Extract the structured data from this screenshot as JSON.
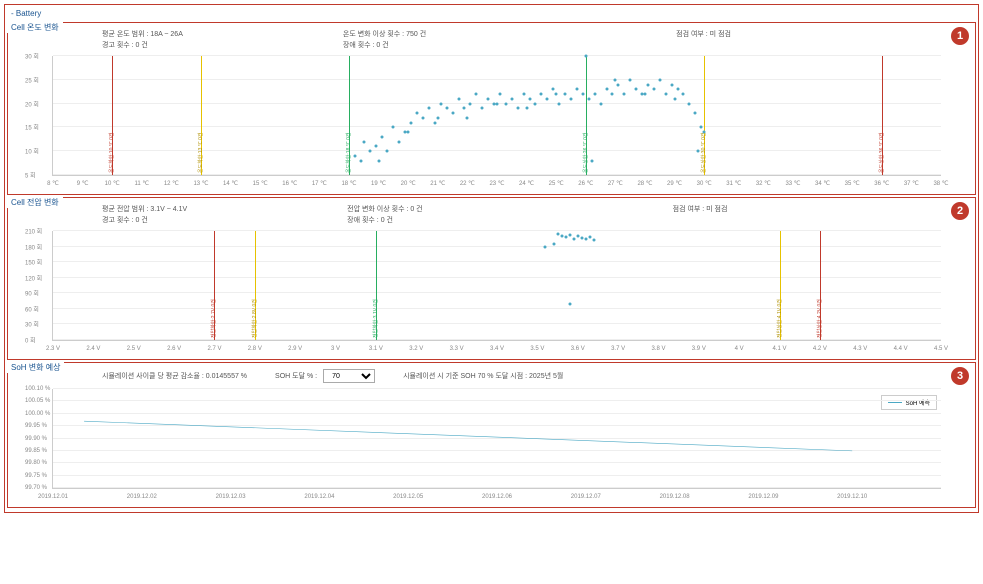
{
  "header": {
    "title": "- Battery"
  },
  "badges": {
    "one": "1",
    "two": "2",
    "three": "3"
  },
  "panel1": {
    "title": "Cell 온도 변화",
    "info_left_1": "평균 온도 범위 :  18A ~ 26A",
    "info_left_2": "경고 횟수 :  0 건",
    "info_mid_1": "온도 변화 이상 횟수 :  750 건",
    "info_mid_2": "장애 횟수 :  0 건",
    "info_right": "점검 여부 :  미 점검",
    "ylim": [
      5,
      30
    ],
    "xlim": [
      8,
      38
    ],
    "yticks": [
      5,
      10,
      15,
      20,
      25,
      30
    ],
    "yunit": "회",
    "xticks": [
      8,
      9,
      10,
      11,
      12,
      13,
      14,
      15,
      16,
      17,
      18,
      19,
      20,
      21,
      22,
      23,
      24,
      25,
      26,
      27,
      28,
      29,
      30,
      31,
      32,
      33,
      34,
      35,
      36,
      37,
      38
    ],
    "xunit": "℃",
    "vlines": [
      {
        "x": 10,
        "color": "red",
        "label": "온도하한:10 ℃ 0건"
      },
      {
        "x": 13,
        "color": "yellow",
        "label": "온도하한:13 ℃ 0건"
      },
      {
        "x": 18,
        "color": "green",
        "label": "온도하한:18 ℃ 0건"
      },
      {
        "x": 26,
        "color": "green",
        "label": "온도상한:26 ℃ 0건"
      },
      {
        "x": 30,
        "color": "yellow",
        "label": "온도상한:30 ℃ 0건"
      },
      {
        "x": 36,
        "color": "red",
        "label": "온도상한:36 ℃ 0건"
      }
    ],
    "points": [
      [
        18.2,
        9
      ],
      [
        18.5,
        12
      ],
      [
        18.7,
        10
      ],
      [
        18.9,
        11
      ],
      [
        19.1,
        13
      ],
      [
        19.3,
        10
      ],
      [
        19.5,
        15
      ],
      [
        19.7,
        12
      ],
      [
        19.9,
        14
      ],
      [
        20.1,
        16
      ],
      [
        20.3,
        18
      ],
      [
        20.5,
        17
      ],
      [
        20.7,
        19
      ],
      [
        20.9,
        16
      ],
      [
        21.1,
        20
      ],
      [
        21.3,
        19
      ],
      [
        21.5,
        18
      ],
      [
        21.7,
        21
      ],
      [
        21.9,
        19
      ],
      [
        22.1,
        20
      ],
      [
        22.3,
        22
      ],
      [
        22.5,
        19
      ],
      [
        22.7,
        21
      ],
      [
        22.9,
        20
      ],
      [
        23.1,
        22
      ],
      [
        23.3,
        20
      ],
      [
        23.5,
        21
      ],
      [
        23.7,
        19
      ],
      [
        23.9,
        22
      ],
      [
        24.1,
        21
      ],
      [
        24.3,
        20
      ],
      [
        24.5,
        22
      ],
      [
        24.7,
        21
      ],
      [
        24.9,
        23
      ],
      [
        25.1,
        20
      ],
      [
        25.3,
        22
      ],
      [
        25.5,
        21
      ],
      [
        25.7,
        23
      ],
      [
        25.9,
        22
      ],
      [
        26.0,
        30
      ],
      [
        26.1,
        21
      ],
      [
        26.3,
        22
      ],
      [
        26.5,
        20
      ],
      [
        26.7,
        23
      ],
      [
        26.9,
        22
      ],
      [
        27.1,
        24
      ],
      [
        27.3,
        22
      ],
      [
        27.5,
        25
      ],
      [
        27.7,
        23
      ],
      [
        27.9,
        22
      ],
      [
        28.1,
        24
      ],
      [
        28.3,
        23
      ],
      [
        28.5,
        25
      ],
      [
        28.7,
        22
      ],
      [
        28.9,
        24
      ],
      [
        29.1,
        23
      ],
      [
        29.3,
        22
      ],
      [
        29.5,
        20
      ],
      [
        29.7,
        18
      ],
      [
        29.8,
        10
      ],
      [
        29.9,
        15
      ],
      [
        30.0,
        14
      ],
      [
        19.0,
        8
      ],
      [
        18.4,
        8
      ],
      [
        20.0,
        14
      ],
      [
        22.0,
        17
      ],
      [
        24.0,
        19
      ],
      [
        25.0,
        22
      ],
      [
        27.0,
        25
      ],
      [
        21.0,
        17
      ],
      [
        23.0,
        20
      ],
      [
        26.2,
        8
      ],
      [
        28.0,
        22
      ],
      [
        29.0,
        21
      ]
    ]
  },
  "panel2": {
    "title": "Cell 전압 변화",
    "info_left_1": "평균 전압 범위 :  3.1V ~ 4.1V",
    "info_left_2": "경고 횟수 :  0 건",
    "info_mid_1": "전압 변화 이상 횟수 :  0 건",
    "info_mid_2": "장애 횟수 :  0 건",
    "info_right": "점검 여부 :  미 점검",
    "ylim": [
      0,
      210
    ],
    "xlim": [
      2.3,
      4.5
    ],
    "yticks": [
      0,
      30,
      60,
      90,
      120,
      150,
      180,
      210
    ],
    "yunit": "회",
    "xticks": [
      2.3,
      2.4,
      2.5,
      2.6,
      2.7,
      2.8,
      2.9,
      3.0,
      3.1,
      3.2,
      3.3,
      3.4,
      3.5,
      3.6,
      3.7,
      3.8,
      3.9,
      4.0,
      4.1,
      4.2,
      4.3,
      4.4,
      4.5
    ],
    "xunit": "V",
    "vlines": [
      {
        "x": 2.7,
        "color": "red",
        "label": "전압하한:2.7V 0건"
      },
      {
        "x": 2.8,
        "color": "yellow",
        "label": "전압하한:2.8V 0건"
      },
      {
        "x": 3.1,
        "color": "green",
        "label": "전압하한:3.1V 0건"
      },
      {
        "x": 4.1,
        "color": "yellow",
        "label": "전압상한:4.1V 0건"
      },
      {
        "x": 4.2,
        "color": "red",
        "label": "전압상한:4.2V 0건"
      }
    ],
    "points": [
      [
        3.55,
        205
      ],
      [
        3.56,
        200
      ],
      [
        3.57,
        198
      ],
      [
        3.58,
        202
      ],
      [
        3.59,
        195
      ],
      [
        3.6,
        200
      ],
      [
        3.61,
        197
      ],
      [
        3.62,
        195
      ],
      [
        3.63,
        198
      ],
      [
        3.64,
        192
      ],
      [
        3.58,
        70
      ],
      [
        3.52,
        180
      ],
      [
        3.54,
        185
      ]
    ]
  },
  "panel3": {
    "title": "SoH 변화 예상",
    "ctrl_left": "시뮬레이션 사이클 당 평균 감소율 :  0.0145557 %",
    "ctrl_mid": "SOH 도달 % :",
    "ctrl_select_value": "70",
    "ctrl_right": "시뮬레이션 시 기준 SOH 70 % 도달 시점 :  2025년 5월",
    "legend": "SoH 예측",
    "ylim": [
      99.7,
      100.1
    ],
    "xlim": [
      0,
      10
    ],
    "yticks": [
      99.7,
      99.75,
      99.8,
      99.85,
      99.9,
      99.95,
      100.0,
      100.05,
      100.1
    ],
    "yunit": "%",
    "xticks": [
      "2019.12.01",
      "2019.12.02",
      "2019.12.03",
      "2019.12.04",
      "2019.12.05",
      "2019.12.06",
      "2019.12.07",
      "2019.12.08",
      "2019.12.09",
      "2019.12.10"
    ],
    "line_color": "#4aa8c4",
    "line": [
      [
        0.35,
        99.97
      ],
      [
        9,
        99.85
      ]
    ]
  }
}
